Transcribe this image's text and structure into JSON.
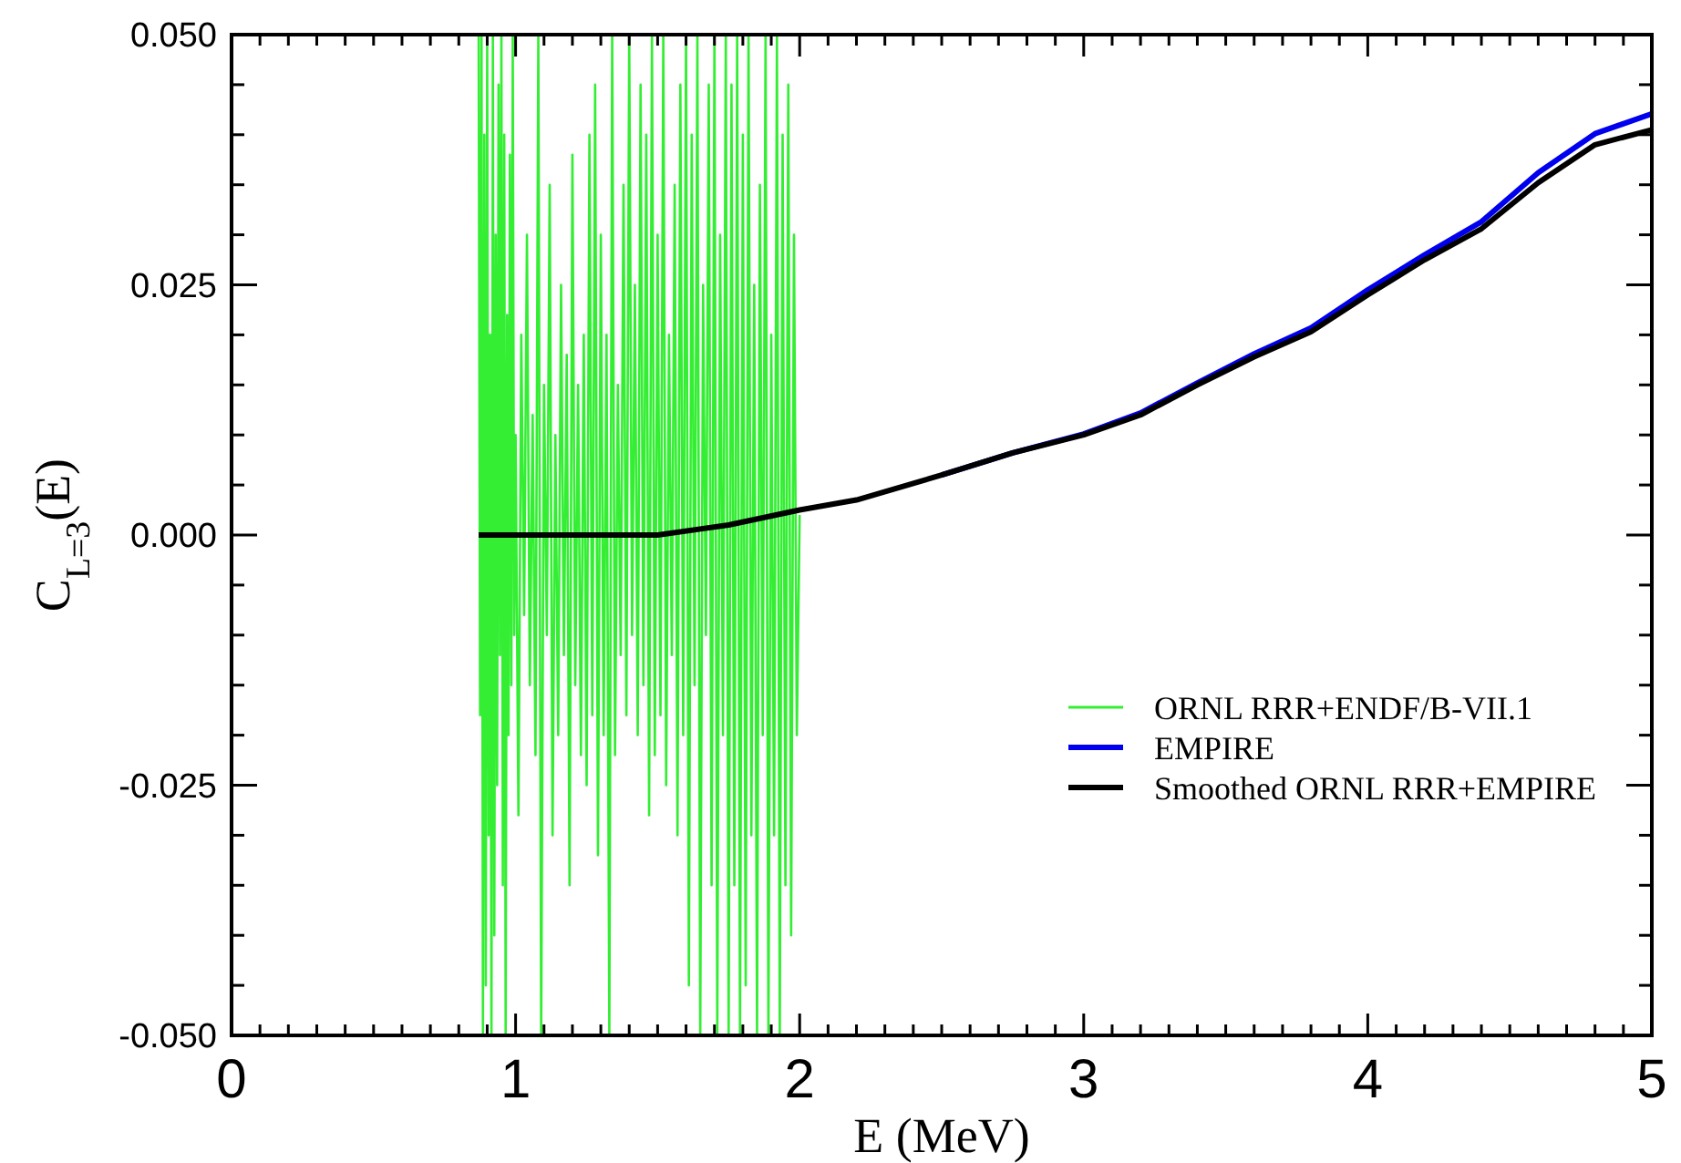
{
  "chart_data": {
    "type": "line",
    "xlabel": "E (MeV)",
    "ylabel": "C$_{L=3}$(E)",
    "xlim": [
      0,
      5
    ],
    "ylim": [
      -0.05,
      0.05
    ],
    "xticks": [
      0,
      {
        "value": 0.1,
        "label": null
      },
      {
        "value": 0.2,
        "label": null
      },
      {
        "value": 0.3,
        "label": null
      },
      {
        "value": 0.4,
        "label": null
      },
      {
        "value": 0.5,
        "label": null
      },
      {
        "value": 0.6,
        "label": null
      },
      {
        "value": 0.7,
        "label": null
      },
      {
        "value": 0.8,
        "label": null
      },
      {
        "value": 0.9,
        "label": null
      },
      1,
      {
        "value": 1.1,
        "label": null
      },
      {
        "value": 1.2,
        "label": null
      },
      {
        "value": 1.3,
        "label": null
      },
      {
        "value": 1.4,
        "label": null
      },
      {
        "value": 1.5,
        "label": null
      },
      {
        "value": 1.6,
        "label": null
      },
      {
        "value": 1.7,
        "label": null
      },
      {
        "value": 1.8,
        "label": null
      },
      {
        "value": 1.9,
        "label": null
      },
      2,
      {
        "value": 2.1,
        "label": null
      },
      {
        "value": 2.2,
        "label": null
      },
      {
        "value": 2.3,
        "label": null
      },
      {
        "value": 2.4,
        "label": null
      },
      {
        "value": 2.5,
        "label": null
      },
      {
        "value": 2.6,
        "label": null
      },
      {
        "value": 2.7,
        "label": null
      },
      {
        "value": 2.8,
        "label": null
      },
      {
        "value": 2.9,
        "label": null
      },
      3,
      {
        "value": 3.1,
        "label": null
      },
      {
        "value": 3.2,
        "label": null
      },
      {
        "value": 3.3,
        "label": null
      },
      {
        "value": 3.4,
        "label": null
      },
      {
        "value": 3.5,
        "label": null
      },
      {
        "value": 3.6,
        "label": null
      },
      {
        "value": 3.7,
        "label": null
      },
      {
        "value": 3.8,
        "label": null
      },
      {
        "value": 3.9,
        "label": null
      },
      4,
      {
        "value": 4.1,
        "label": null
      },
      {
        "value": 4.2,
        "label": null
      },
      {
        "value": 4.3,
        "label": null
      },
      {
        "value": 4.4,
        "label": null
      },
      {
        "value": 4.5,
        "label": null
      },
      {
        "value": 4.6,
        "label": null
      },
      {
        "value": 4.7,
        "label": null
      },
      {
        "value": 4.8,
        "label": null
      },
      {
        "value": 4.9,
        "label": null
      },
      5
    ],
    "yticks": [
      {
        "value": -0.05,
        "label": "-0.050"
      },
      {
        "value": -0.045,
        "label": null
      },
      {
        "value": -0.04,
        "label": null
      },
      {
        "value": -0.035,
        "label": null
      },
      {
        "value": -0.03,
        "label": null
      },
      {
        "value": -0.025,
        "label": "-0.025"
      },
      {
        "value": -0.02,
        "label": null
      },
      {
        "value": -0.015,
        "label": null
      },
      {
        "value": -0.01,
        "label": null
      },
      {
        "value": -0.005,
        "label": null
      },
      {
        "value": 0,
        "label": "0.000"
      },
      {
        "value": 0.005,
        "label": null
      },
      {
        "value": 0.01,
        "label": null
      },
      {
        "value": 0.015,
        "label": null
      },
      {
        "value": 0.02,
        "label": null
      },
      {
        "value": 0.025,
        "label": "0.025"
      },
      {
        "value": 0.03,
        "label": null
      },
      {
        "value": 0.035,
        "label": null
      },
      {
        "value": 0.04,
        "label": null
      },
      {
        "value": 0.045,
        "label": null
      },
      {
        "value": 0.05,
        "label": "0.050"
      }
    ],
    "grid": false,
    "legend": "right",
    "line_style": "solid",
    "marker": "none",
    "series": [
      {
        "name": "ORNL RRR+ENDF/B-VII.1",
        "color": "#33ee33",
        "x": [
          0.87,
          0.875,
          0.88,
          0.885,
          0.89,
          0.895,
          0.9,
          0.905,
          0.91,
          0.915,
          0.92,
          0.925,
          0.93,
          0.935,
          0.94,
          0.945,
          0.95,
          0.955,
          0.96,
          0.965,
          0.97,
          0.975,
          0.98,
          0.985,
          0.99,
          0.995,
          1.0,
          1.01,
          1.02,
          1.03,
          1.04,
          1.05,
          1.06,
          1.07,
          1.08,
          1.09,
          1.1,
          1.11,
          1.12,
          1.13,
          1.14,
          1.15,
          1.16,
          1.17,
          1.18,
          1.19,
          1.2,
          1.21,
          1.22,
          1.23,
          1.24,
          1.25,
          1.26,
          1.27,
          1.28,
          1.29,
          1.3,
          1.31,
          1.32,
          1.33,
          1.34,
          1.35,
          1.36,
          1.37,
          1.38,
          1.39,
          1.4,
          1.41,
          1.42,
          1.43,
          1.44,
          1.45,
          1.46,
          1.47,
          1.48,
          1.49,
          1.5,
          1.51,
          1.52,
          1.53,
          1.54,
          1.55,
          1.56,
          1.57,
          1.58,
          1.59,
          1.6,
          1.61,
          1.62,
          1.63,
          1.64,
          1.65,
          1.66,
          1.67,
          1.68,
          1.69,
          1.7,
          1.71,
          1.72,
          1.73,
          1.74,
          1.75,
          1.76,
          1.77,
          1.78,
          1.79,
          1.8,
          1.81,
          1.82,
          1.83,
          1.84,
          1.85,
          1.86,
          1.87,
          1.88,
          1.89,
          1.9,
          1.91,
          1.92,
          1.93,
          1.94,
          1.95,
          1.96,
          1.97,
          1.98,
          1.99,
          2.0
        ],
        "values": [
          0.05,
          -0.018,
          0.05,
          -0.05,
          0.04,
          -0.045,
          0.05,
          -0.03,
          0.02,
          -0.05,
          0.05,
          -0.04,
          0.03,
          -0.025,
          0.045,
          -0.012,
          0.05,
          -0.035,
          0.04,
          -0.05,
          0.022,
          -0.02,
          0.038,
          -0.015,
          0.05,
          -0.01,
          0.01,
          -0.028,
          0.02,
          -0.008,
          0.03,
          -0.015,
          0.012,
          -0.022,
          0.05,
          -0.05,
          0.015,
          -0.01,
          0.035,
          -0.03,
          0.01,
          -0.02,
          0.025,
          -0.012,
          0.018,
          -0.035,
          0.038,
          -0.015,
          0.015,
          -0.022,
          0.02,
          -0.025,
          0.04,
          -0.018,
          0.045,
          -0.032,
          0.03,
          -0.02,
          0.02,
          -0.05,
          0.05,
          -0.022,
          0.015,
          -0.012,
          0.035,
          -0.018,
          0.05,
          -0.01,
          0.025,
          -0.02,
          0.045,
          -0.015,
          0.04,
          -0.028,
          0.05,
          -0.022,
          0.03,
          -0.018,
          0.05,
          -0.025,
          0.02,
          -0.012,
          0.035,
          -0.03,
          0.045,
          -0.02,
          0.05,
          -0.045,
          0.04,
          -0.015,
          0.05,
          -0.05,
          0.025,
          -0.01,
          0.045,
          -0.035,
          0.05,
          -0.05,
          0.03,
          -0.02,
          0.05,
          -0.05,
          0.045,
          -0.035,
          0.05,
          -0.05,
          0.04,
          -0.045,
          0.05,
          -0.03,
          0.025,
          -0.05,
          0.035,
          -0.02,
          0.05,
          -0.05,
          0.02,
          -0.03,
          0.05,
          -0.05,
          0.04,
          -0.035,
          0.045,
          -0.04,
          0.03,
          -0.02,
          0.002
        ]
      },
      {
        "name": "EMPIRE",
        "color": "#0000ee",
        "x": [
          2.5,
          2.75,
          3.0,
          3.2,
          3.4,
          3.6,
          3.8,
          4.0,
          4.2,
          4.4,
          4.6,
          4.8,
          5.0
        ],
        "values": [
          0.006,
          0.0082,
          0.0101,
          0.0122,
          0.0152,
          0.0181,
          0.0207,
          0.0245,
          0.028,
          0.0313,
          0.0362,
          0.0401,
          0.0421
        ]
      },
      {
        "name": "Smoothed ORNL RRR+EMPIRE",
        "color": "#000000",
        "x": [
          0.87,
          1.5,
          1.75,
          2.0,
          2.2,
          2.5,
          2.75,
          3.0,
          3.2,
          3.4,
          3.6,
          3.8,
          4.0,
          4.2,
          4.4,
          4.6,
          4.8,
          5.0
        ],
        "values": [
          0,
          0,
          0.001,
          0.0025,
          0.0035,
          0.006,
          0.0082,
          0.01,
          0.012,
          0.015,
          0.0178,
          0.0203,
          0.024,
          0.0275,
          0.0306,
          0.0352,
          0.039,
          0.0405
        ]
      }
    ]
  }
}
